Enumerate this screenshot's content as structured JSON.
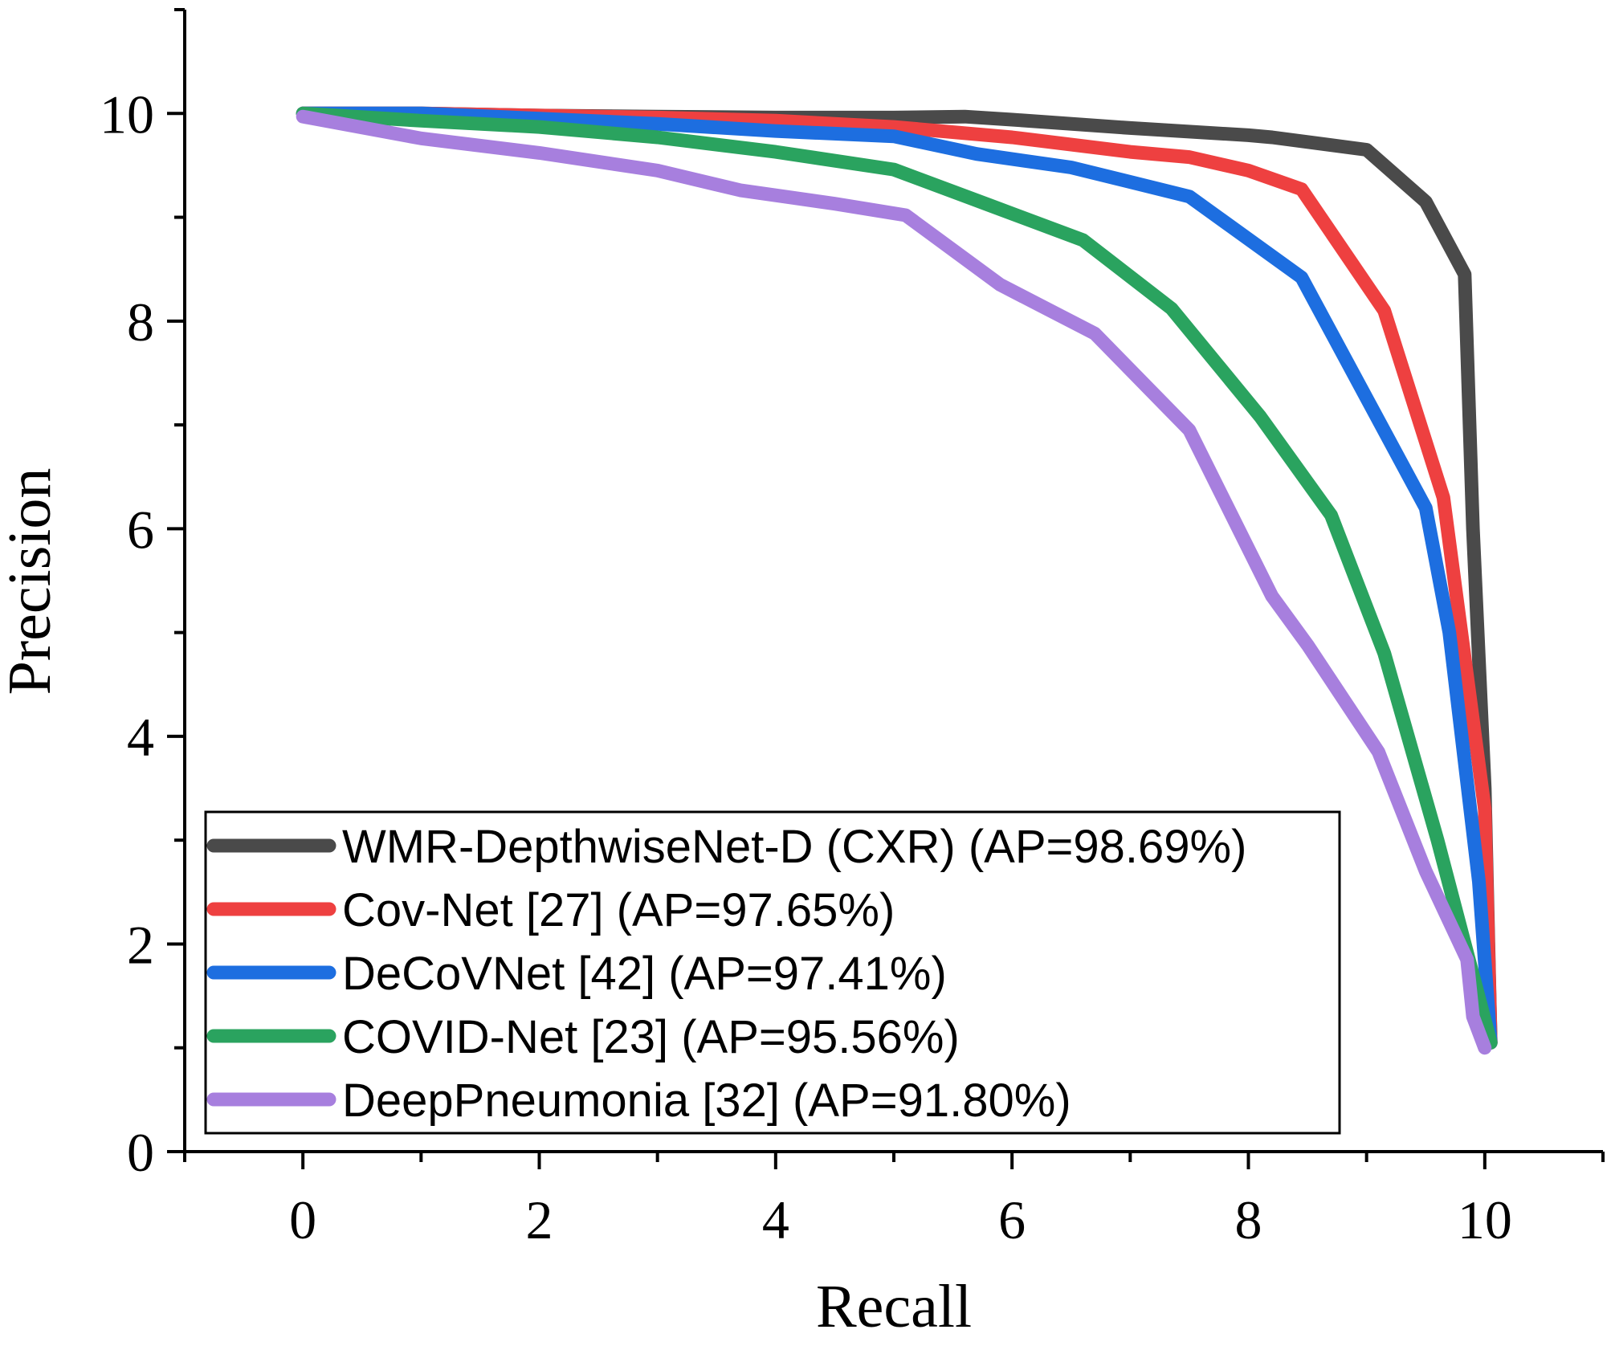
{
  "chart_data": {
    "type": "line",
    "title": "",
    "xlabel": "Recall",
    "ylabel": "Precision",
    "xlim": [
      -1,
      11
    ],
    "ylim": [
      0,
      11
    ],
    "xticks": [
      0,
      2,
      4,
      6,
      8,
      10
    ],
    "yticks": [
      0,
      2,
      4,
      6,
      8,
      10
    ],
    "x_tick_labels": [
      "0",
      "2",
      "4",
      "6",
      "8",
      "10"
    ],
    "y_tick_labels": [
      "0",
      "2",
      "4",
      "6",
      "8",
      "10"
    ],
    "grid": false,
    "legend_position": "bottom-left",
    "series": [
      {
        "name": "WMR-DepthwiseNet-D (CXR) (AP=98.69%)",
        "color": "#4a4a4a",
        "x": [
          0,
          1,
          2,
          3,
          4,
          5,
          5.6,
          6,
          7,
          8,
          8.2,
          9,
          9.5,
          9.83,
          9.9,
          10.0,
          10.05
        ],
        "y": [
          10,
          10,
          9.98,
          9.97,
          9.96,
          9.96,
          9.97,
          9.94,
          9.86,
          9.79,
          9.77,
          9.65,
          9.15,
          8.45,
          6.0,
          3.5,
          1.05
        ]
      },
      {
        "name": "Cov-Net [27] (AP=97.65%)",
        "color": "#ee4040",
        "x": [
          0,
          1,
          2,
          3,
          4,
          5,
          6,
          7,
          7.5,
          8,
          8.45,
          9.15,
          9.65,
          10.0,
          10.05
        ],
        "y": [
          10,
          10,
          9.98,
          9.96,
          9.93,
          9.87,
          9.77,
          9.63,
          9.58,
          9.45,
          9.27,
          8.1,
          6.3,
          3.3,
          1.05
        ]
      },
      {
        "name": "DeCoVNet [42] (AP=97.41%)",
        "color": "#1d6ee0",
        "x": [
          0,
          1,
          2,
          3,
          4,
          5,
          5.7,
          6.5,
          7.5,
          8.45,
          9.5,
          9.7,
          9.95,
          10.05
        ],
        "y": [
          10,
          10,
          9.95,
          9.9,
          9.83,
          9.78,
          9.61,
          9.48,
          9.2,
          8.42,
          6.2,
          5.0,
          2.6,
          1.05
        ]
      },
      {
        "name": "COVID-Net [23] (AP=95.56%)",
        "color": "#2aa35f",
        "x": [
          0,
          1,
          2,
          3,
          4,
          5,
          5.8,
          6.6,
          7.35,
          8.1,
          8.7,
          9.15,
          9.6,
          10.05
        ],
        "y": [
          10,
          9.93,
          9.87,
          9.77,
          9.63,
          9.46,
          9.12,
          8.78,
          8.12,
          7.08,
          6.13,
          4.8,
          3.0,
          1.05
        ]
      },
      {
        "name": "DeepPneumonia [32] (AP=91.80%)",
        "color": "#a77fde",
        "x": [
          0,
          1,
          2,
          3,
          3.7,
          4.5,
          5.1,
          5.9,
          6.7,
          7.5,
          8.2,
          8.5,
          9.1,
          9.5,
          9.85,
          9.9,
          10.0
        ],
        "y": [
          9.97,
          9.76,
          9.62,
          9.45,
          9.26,
          9.13,
          9.02,
          8.35,
          7.88,
          6.95,
          5.35,
          4.88,
          3.85,
          2.7,
          1.85,
          1.3,
          1.0
        ]
      }
    ]
  }
}
